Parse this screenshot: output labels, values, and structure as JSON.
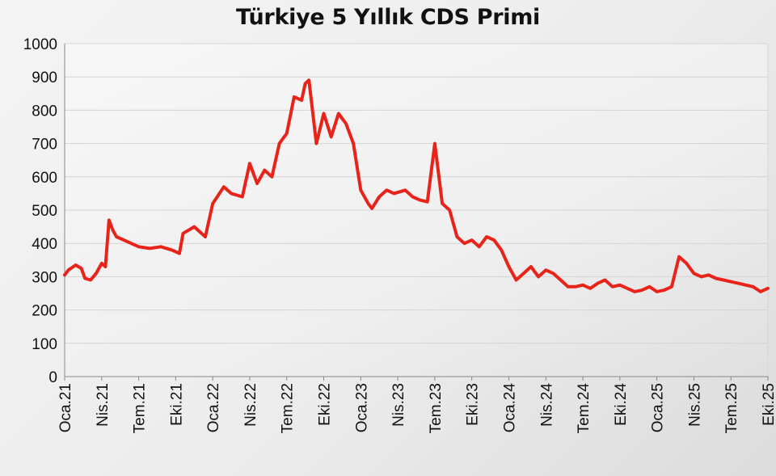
{
  "chart_data": {
    "type": "line",
    "title": "Türkiye 5 Yıllık CDS Primi",
    "xlabel": "",
    "ylabel": "",
    "ylim": [
      0,
      1000
    ],
    "yticks": [
      0,
      100,
      200,
      300,
      400,
      500,
      600,
      700,
      800,
      900,
      1000
    ],
    "xticks": [
      "Oca.21",
      "Nis.21",
      "Tem.21",
      "Eki.21",
      "Oca.22",
      "Nis.22",
      "Tem.22",
      "Eki.22",
      "Oca.23",
      "Nis.23",
      "Tem.23",
      "Eki.23",
      "Oca.24",
      "Nis.24",
      "Tem.24",
      "Eki.24",
      "Oca.25",
      "Nis.25",
      "Tem.25",
      "Eki.25"
    ],
    "grid": true,
    "legend": "none",
    "series_color": "#e8231a",
    "series": [
      {
        "x": [
          0,
          0.1,
          0.3,
          0.45,
          0.55,
          0.7,
          0.85,
          1.0,
          1.1,
          1.2,
          1.3,
          1.4,
          1.6,
          1.8,
          2.0,
          2.3,
          2.6,
          2.9,
          3.1,
          3.2,
          3.5,
          3.8,
          4.0,
          4.3,
          4.5,
          4.8,
          5.0,
          5.2,
          5.4,
          5.6,
          5.8,
          6.0,
          6.2,
          6.4,
          6.5,
          6.6,
          6.8,
          7.0,
          7.2,
          7.4,
          7.6,
          7.8,
          8.0,
          8.2,
          8.3,
          8.5,
          8.7,
          8.9,
          9.2,
          9.4,
          9.6,
          9.8,
          10.0,
          10.2,
          10.4,
          10.6,
          10.8,
          11.0,
          11.2,
          11.4,
          11.6,
          11.8,
          12.0,
          12.2,
          12.4,
          12.6,
          12.8,
          13.0,
          13.2,
          13.4,
          13.6,
          13.8,
          14.0,
          14.2,
          14.4,
          14.6,
          14.8,
          15.0,
          15.2,
          15.4,
          15.6,
          15.8,
          16.0,
          16.2,
          16.4,
          16.6,
          16.8,
          17.0,
          17.2,
          17.4,
          17.6,
          17.8,
          18.0,
          18.2,
          18.4,
          18.6,
          18.8,
          19.0
        ],
        "values": [
          305,
          320,
          335,
          325,
          295,
          290,
          310,
          340,
          330,
          470,
          440,
          420,
          410,
          400,
          390,
          385,
          390,
          380,
          370,
          430,
          450,
          420,
          520,
          570,
          550,
          540,
          640,
          580,
          620,
          600,
          700,
          730,
          840,
          830,
          880,
          890,
          700,
          790,
          720,
          790,
          760,
          700,
          560,
          520,
          505,
          540,
          560,
          550,
          560,
          540,
          530,
          525,
          700,
          520,
          500,
          420,
          400,
          410,
          390,
          420,
          410,
          380,
          330,
          290,
          310,
          330,
          300,
          320,
          310,
          290,
          270,
          270,
          275,
          265,
          280,
          290,
          270,
          275,
          265,
          255,
          260,
          270,
          255,
          260,
          270,
          360,
          340,
          310,
          300,
          305,
          295,
          290,
          285,
          280,
          275,
          270,
          255,
          265
        ]
      }
    ]
  }
}
